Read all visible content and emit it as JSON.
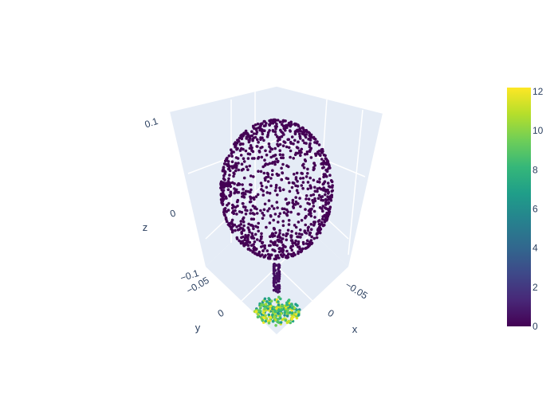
{
  "chart_data": {
    "type": "scatter3d",
    "colorscale": "Viridis",
    "colorscale_stops": [
      "#440154",
      "#482878",
      "#3e4989",
      "#31688e",
      "#26828e",
      "#1f9e89",
      "#35b779",
      "#6ece58",
      "#b5de2b",
      "#fde725"
    ],
    "color_range": [
      0,
      12.2
    ],
    "background_color": "#e5ecf6",
    "grid_color": "#ffffff",
    "axes": {
      "x": {
        "title": "x",
        "ticks": [
          {
            "label": "−0.05",
            "value": -0.05
          },
          {
            "label": "0",
            "value": 0
          }
        ]
      },
      "y": {
        "title": "y",
        "ticks": [
          {
            "label": "−0.05",
            "value": -0.05
          },
          {
            "label": "0",
            "value": 0
          }
        ]
      },
      "z": {
        "title": "z",
        "ticks": [
          {
            "label": "−0.1",
            "value": -0.1
          },
          {
            "label": "0",
            "value": 0
          },
          {
            "label": "0.1",
            "value": 0.1
          }
        ]
      }
    },
    "colorbar": {
      "ticks": [
        "0",
        "2",
        "4",
        "6",
        "8",
        "10",
        "12"
      ],
      "tick_values": [
        0,
        2,
        4,
        6,
        8,
        10,
        12
      ]
    },
    "clusters": [
      {
        "shape": "sphere",
        "center": [
          0,
          0,
          0.04
        ],
        "radius": 0.06,
        "count": 1100,
        "color_value": 0
      },
      {
        "shape": "stem",
        "center": [
          0,
          0,
          -0.055
        ],
        "length": 0.03,
        "count": 70,
        "color_value": 0.5
      },
      {
        "shape": "disk",
        "center": [
          0,
          0,
          -0.09
        ],
        "radius": 0.025,
        "count": 240,
        "color_value_range": [
          6,
          12.2
        ]
      }
    ],
    "grid": "on",
    "legend": "none"
  }
}
